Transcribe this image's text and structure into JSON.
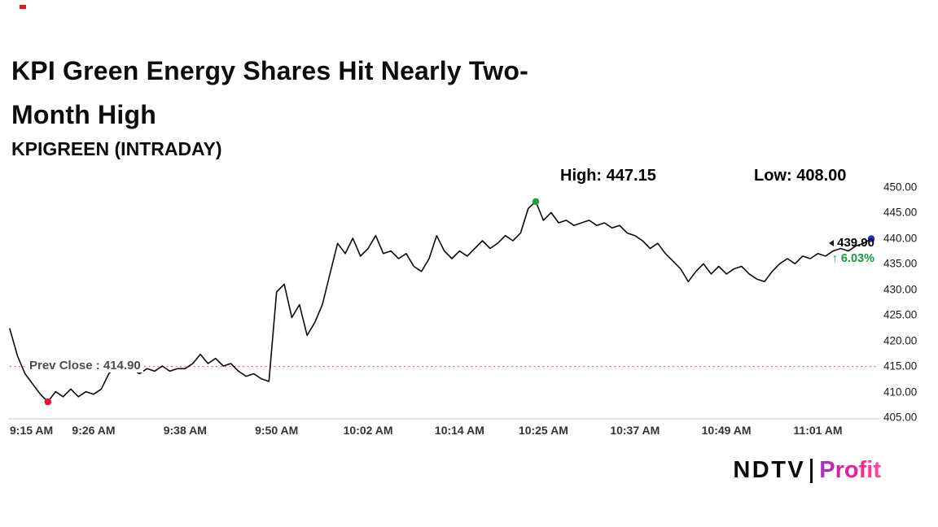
{
  "header": {
    "title_line1": "KPI Green Energy Shares Hit Nearly Two-",
    "title_line2": "Month High",
    "subtitle": "KPIGREEN (INTRADAY)"
  },
  "stats": {
    "high_text": "High: 447.15",
    "low_text": "Low: 408.00"
  },
  "price_tag": {
    "last_text": "439.90",
    "change_text": "↑ 6.03%"
  },
  "prev_close_label": "Prev Close : 414.90",
  "footer": {
    "brand_ndtv": "NDTV",
    "brand_profit": "Profit"
  },
  "chart_data": {
    "type": "line",
    "title": "KPIGREEN (INTRADAY)",
    "ylim": [
      405,
      450
    ],
    "y_ticks": [
      "450.00",
      "445.00",
      "440.00",
      "435.00",
      "430.00",
      "425.00",
      "420.00",
      "415.00",
      "410.00",
      "405.00"
    ],
    "x_ticks": [
      "9:15 AM",
      "9:26 AM",
      "9:38 AM",
      "9:50 AM",
      "10:02 AM",
      "10:14 AM",
      "10:25 AM",
      "10:37 AM",
      "10:49 AM",
      "11:01 AM"
    ],
    "prev_close": 414.9,
    "high": 447.15,
    "low": 408.0,
    "last": 439.9,
    "change_pct": "6.03%",
    "line_color": "#0a0a0a",
    "grid": false,
    "times": [
      "9:15",
      "9:16",
      "9:17",
      "9:18",
      "9:19",
      "9:20",
      "9:21",
      "9:22",
      "9:23",
      "9:24",
      "9:25",
      "9:26",
      "9:27",
      "9:28",
      "9:29",
      "9:30",
      "9:31",
      "9:32",
      "9:33",
      "9:34",
      "9:35",
      "9:36",
      "9:37",
      "9:38",
      "9:39",
      "9:40",
      "9:41",
      "9:42",
      "9:43",
      "9:44",
      "9:45",
      "9:46",
      "9:47",
      "9:48",
      "9:49",
      "9:50",
      "9:51",
      "9:52",
      "9:53",
      "9:54",
      "9:55",
      "9:56",
      "9:57",
      "9:58",
      "9:59",
      "10:00",
      "10:01",
      "10:02",
      "10:03",
      "10:04",
      "10:05",
      "10:06",
      "10:07",
      "10:08",
      "10:09",
      "10:10",
      "10:11",
      "10:12",
      "10:13",
      "10:14",
      "10:15",
      "10:16",
      "10:17",
      "10:18",
      "10:19",
      "10:20",
      "10:21",
      "10:22",
      "10:23",
      "10:24",
      "10:25",
      "10:26",
      "10:27",
      "10:28",
      "10:29",
      "10:30",
      "10:31",
      "10:32",
      "10:33",
      "10:34",
      "10:35",
      "10:36",
      "10:37",
      "10:38",
      "10:39",
      "10:40",
      "10:41",
      "10:42",
      "10:43",
      "10:44",
      "10:45",
      "10:46",
      "10:47",
      "10:48",
      "10:49",
      "10:50",
      "10:51",
      "10:52",
      "10:53",
      "10:54",
      "10:55",
      "10:56",
      "10:57",
      "10:58",
      "10:59",
      "11:00",
      "11:01",
      "11:02",
      "11:03",
      "11:04",
      "11:05",
      "11:06",
      "11:07",
      "11:08"
    ],
    "values": [
      422.3,
      417.0,
      413.5,
      411.5,
      409.5,
      408.0,
      410.0,
      409.0,
      410.5,
      409.0,
      410.0,
      409.5,
      410.5,
      413.5,
      415.0,
      414.0,
      414.5,
      413.5,
      414.5,
      414.0,
      415.0,
      414.0,
      414.5,
      414.5,
      415.5,
      417.3,
      415.5,
      416.5,
      415.0,
      415.5,
      414.0,
      413.0,
      413.5,
      412.5,
      412.0,
      429.5,
      431.0,
      424.5,
      427.0,
      421.0,
      423.5,
      427.0,
      433.0,
      439.0,
      437.0,
      440.0,
      436.5,
      438.0,
      440.5,
      437.0,
      437.5,
      436.0,
      437.0,
      434.5,
      433.5,
      436.0,
      440.5,
      437.5,
      436.0,
      437.5,
      436.5,
      438.0,
      439.5,
      438.0,
      439.0,
      440.5,
      439.5,
      441.0,
      445.8,
      447.15,
      443.5,
      445.0,
      443.0,
      443.5,
      442.5,
      443.0,
      443.5,
      442.5,
      443.0,
      442.0,
      442.5,
      441.0,
      440.5,
      439.5,
      438.0,
      439.0,
      437.0,
      435.5,
      434.0,
      431.5,
      433.5,
      435.0,
      433.0,
      434.5,
      433.0,
      434.0,
      434.5,
      433.0,
      432.0,
      431.5,
      433.5,
      435.0,
      436.0,
      435.0,
      436.5,
      436.0,
      437.0,
      436.5,
      437.5,
      438.0,
      437.5,
      438.5,
      439.0,
      439.9
    ],
    "markers": [
      {
        "name": "low-marker",
        "time": "9:20",
        "value": 408.0,
        "color": "#e8112d"
      },
      {
        "name": "high-marker",
        "time": "10:24",
        "value": 447.15,
        "color": "#17a03c"
      },
      {
        "name": "last-marker",
        "time": "11:08",
        "value": 439.9,
        "color": "#2a2ad1"
      }
    ]
  }
}
